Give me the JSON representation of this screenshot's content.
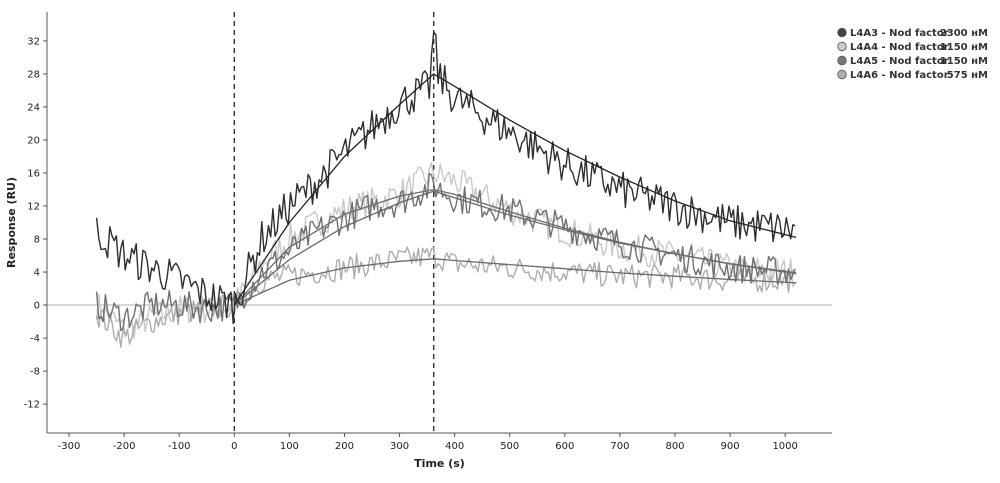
{
  "chart_data": {
    "type": "line",
    "xlabel": "Time (s)",
    "ylabel": "Response (RU)",
    "xlim": [
      -340,
      1085
    ],
    "ylim": [
      -15.5,
      35.5
    ],
    "x_ticks": [
      -300,
      -200,
      -100,
      0,
      100,
      200,
      300,
      400,
      500,
      600,
      700,
      800,
      900,
      1000
    ],
    "y_ticks": [
      -12,
      -8,
      -4,
      0,
      4,
      8,
      12,
      16,
      20,
      24,
      28,
      32
    ],
    "reference_lines_x": [
      0,
      362
    ],
    "baseline_y": 0,
    "legend_position": "top-right",
    "series": [
      {
        "name": "L4A3 - Nod factor",
        "concentration": "2300 нМ",
        "color": "#2e2e2e",
        "marker_color": "#444444",
        "raw": [
          [
            -250,
            9
          ],
          [
            -200,
            6
          ],
          [
            -150,
            4.5
          ],
          [
            -100,
            3
          ],
          [
            -50,
            1.2
          ],
          [
            0,
            0
          ],
          [
            50,
            8
          ],
          [
            100,
            12
          ],
          [
            150,
            15
          ],
          [
            200,
            18.5
          ],
          [
            250,
            21.5
          ],
          [
            300,
            24.5
          ],
          [
            355,
            26.5
          ],
          [
            362,
            33
          ],
          [
            370,
            28
          ],
          [
            400,
            25
          ],
          [
            500,
            21
          ],
          [
            600,
            17
          ],
          [
            700,
            14
          ],
          [
            800,
            12
          ],
          [
            900,
            10
          ],
          [
            1020,
            9
          ]
        ],
        "fit": [
          [
            0,
            0
          ],
          [
            100,
            10
          ],
          [
            200,
            18
          ],
          [
            300,
            24.3
          ],
          [
            362,
            28
          ],
          [
            400,
            26.5
          ],
          [
            500,
            22.4
          ],
          [
            600,
            18.7
          ],
          [
            700,
            15.5
          ],
          [
            800,
            12.6
          ],
          [
            900,
            10.2
          ],
          [
            1020,
            8.2
          ]
        ],
        "noise": 2.3
      },
      {
        "name": "L4A4 - Nod factor",
        "concentration": "1150 нМ",
        "color": "#c8c8c8",
        "marker_color": "#cccccc",
        "raw": [
          [
            -250,
            0
          ],
          [
            -200,
            -3
          ],
          [
            -150,
            -1.5
          ],
          [
            -100,
            -0.5
          ],
          [
            -50,
            -0.5
          ],
          [
            0,
            0
          ],
          [
            50,
            5
          ],
          [
            100,
            8
          ],
          [
            150,
            10
          ],
          [
            200,
            11.5
          ],
          [
            250,
            12.5
          ],
          [
            300,
            13.5
          ],
          [
            362,
            16
          ],
          [
            400,
            15
          ],
          [
            500,
            11.5
          ],
          [
            600,
            9
          ],
          [
            700,
            7
          ],
          [
            800,
            6
          ],
          [
            900,
            4.5
          ],
          [
            1020,
            4
          ]
        ],
        "fit": [
          [
            0,
            0
          ],
          [
            100,
            7
          ],
          [
            200,
            11
          ],
          [
            300,
            13.2
          ],
          [
            362,
            14
          ],
          [
            400,
            13.4
          ],
          [
            500,
            11.3
          ],
          [
            600,
            9.3
          ],
          [
            700,
            7.6
          ],
          [
            800,
            6.2
          ],
          [
            900,
            5
          ],
          [
            1020,
            3.8
          ]
        ],
        "noise": 1.8
      },
      {
        "name": "L4A5 - Nod factor",
        "concentration": "1150 нМ",
        "color": "#707070",
        "marker_color": "#777777",
        "raw": [
          [
            -250,
            0
          ],
          [
            -200,
            -1.5
          ],
          [
            -150,
            0
          ],
          [
            -100,
            0
          ],
          [
            -50,
            -0.5
          ],
          [
            0,
            0
          ],
          [
            50,
            4
          ],
          [
            100,
            6.5
          ],
          [
            150,
            9
          ],
          [
            200,
            10.5
          ],
          [
            250,
            12
          ],
          [
            300,
            12.5
          ],
          [
            362,
            14.5
          ],
          [
            400,
            13
          ],
          [
            500,
            11.5
          ],
          [
            600,
            9.5
          ],
          [
            700,
            7.5
          ],
          [
            800,
            6
          ],
          [
            900,
            4.5
          ],
          [
            1020,
            4
          ]
        ],
        "fit": [
          [
            0,
            0
          ],
          [
            100,
            5.5
          ],
          [
            200,
            9.5
          ],
          [
            300,
            12.4
          ],
          [
            362,
            13.8
          ],
          [
            400,
            13
          ],
          [
            500,
            10.9
          ],
          [
            600,
            9.1
          ],
          [
            700,
            7.5
          ],
          [
            800,
            6.2
          ],
          [
            900,
            5
          ],
          [
            1020,
            3.9
          ]
        ],
        "noise": 1.8
      },
      {
        "name": "L4A6 - Nod factor",
        "concentration": "575 нМ",
        "color": "#acacac",
        "marker_color": "#b0b0b0",
        "raw": [
          [
            -250,
            -1
          ],
          [
            -200,
            -4
          ],
          [
            -150,
            -2
          ],
          [
            -100,
            -1
          ],
          [
            -50,
            -0.5
          ],
          [
            0,
            0
          ],
          [
            50,
            3
          ],
          [
            100,
            3.5
          ],
          [
            150,
            4
          ],
          [
            200,
            4.5
          ],
          [
            250,
            5
          ],
          [
            300,
            5.5
          ],
          [
            362,
            6
          ],
          [
            400,
            5
          ],
          [
            500,
            4.5
          ],
          [
            600,
            4
          ],
          [
            700,
            3.5
          ],
          [
            800,
            3.5
          ],
          [
            900,
            3
          ],
          [
            1020,
            3
          ]
        ],
        "fit": [
          [
            0,
            0
          ],
          [
            100,
            3
          ],
          [
            200,
            4.5
          ],
          [
            300,
            5.3
          ],
          [
            362,
            5.6
          ],
          [
            400,
            5.4
          ],
          [
            500,
            4.9
          ],
          [
            600,
            4.4
          ],
          [
            700,
            3.9
          ],
          [
            800,
            3.5
          ],
          [
            900,
            3.1
          ],
          [
            1020,
            2.7
          ]
        ],
        "noise": 1.5
      }
    ]
  }
}
